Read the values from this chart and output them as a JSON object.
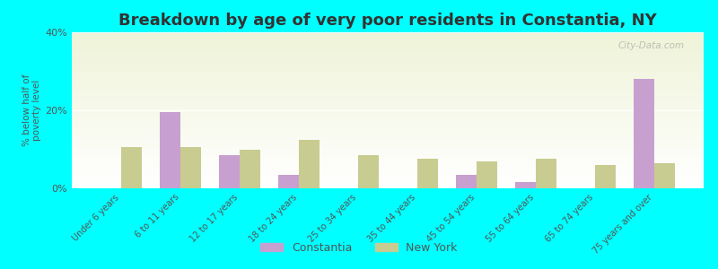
{
  "title": "Breakdown by age of very poor residents in Constantia, NY",
  "ylabel": "% below half of\npoverty level",
  "categories": [
    "Under 6 years",
    "6 to 11 years",
    "12 to 17 years",
    "18 to 24 years",
    "25 to 34 years",
    "35 to 44 years",
    "45 to 54 years",
    "55 to 64 years",
    "65 to 74 years",
    "75 years and over"
  ],
  "constantia_values": [
    0,
    19.5,
    8.5,
    3.5,
    0,
    0,
    3.5,
    1.5,
    0,
    28.0
  ],
  "newyork_values": [
    10.5,
    10.5,
    10.0,
    12.5,
    8.5,
    7.5,
    7.0,
    7.5,
    6.0,
    6.5
  ],
  "constantia_color": "#c8a0d0",
  "newyork_color": "#c8cc90",
  "background_color": "#00ffff",
  "plot_bg_top": "#eef3d8",
  "plot_bg_bottom": "#ffffff",
  "ylim": [
    0,
    40
  ],
  "yticks": [
    0,
    20,
    40
  ],
  "ytick_labels": [
    "0%",
    "20%",
    "40%"
  ],
  "title_fontsize": 13,
  "legend_labels": [
    "Constantia",
    "New York"
  ],
  "watermark": "City-Data.com"
}
